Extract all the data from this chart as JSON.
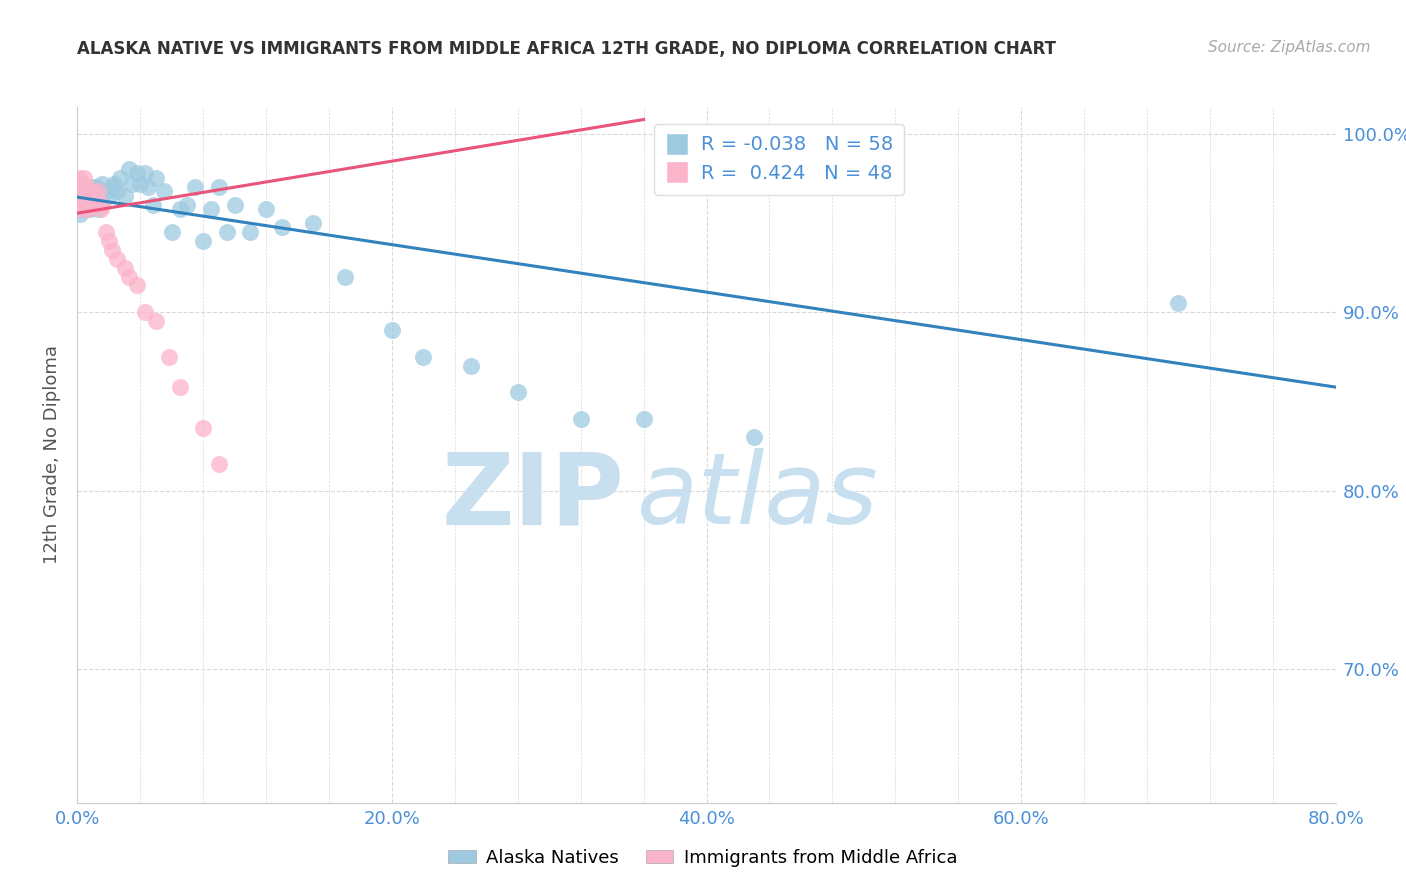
{
  "title": "ALASKA NATIVE VS IMMIGRANTS FROM MIDDLE AFRICA 12TH GRADE, NO DIPLOMA CORRELATION CHART",
  "source": "Source: ZipAtlas.com",
  "ylabel": "12th Grade, No Diploma",
  "xmin": 0.0,
  "xmax": 0.8,
  "ymin": 0.625,
  "ymax": 1.015,
  "xtick_labels": [
    "0.0%",
    "",
    "",
    "",
    "",
    "20.0%",
    "",
    "",
    "",
    "",
    "40.0%",
    "",
    "",
    "",
    "",
    "60.0%",
    "",
    "",
    "",
    "",
    "80.0%"
  ],
  "xtick_vals": [
    0.0,
    0.04,
    0.08,
    0.12,
    0.16,
    0.2,
    0.24,
    0.28,
    0.32,
    0.36,
    0.4,
    0.44,
    0.48,
    0.52,
    0.56,
    0.6,
    0.64,
    0.68,
    0.72,
    0.76,
    0.8
  ],
  "ytick_labels": [
    "70.0%",
    "80.0%",
    "90.0%",
    "100.0%"
  ],
  "ytick_vals": [
    0.7,
    0.8,
    0.9,
    1.0
  ],
  "blue_r": "-0.038",
  "blue_n": "58",
  "pink_r": "0.424",
  "pink_n": "48",
  "blue_color": "#9ecae1",
  "pink_color": "#fbb4c9",
  "blue_line_color": "#3182bd",
  "pink_line_color": "#e8547a",
  "legend_label_blue": "Alaska Natives",
  "legend_label_pink": "Immigrants from Middle Africa",
  "blue_x": [
    0.001,
    0.002,
    0.003,
    0.004,
    0.004,
    0.005,
    0.005,
    0.006,
    0.006,
    0.007,
    0.008,
    0.009,
    0.01,
    0.01,
    0.011,
    0.012,
    0.013,
    0.014,
    0.015,
    0.016,
    0.018,
    0.02,
    0.022,
    0.023,
    0.025,
    0.027,
    0.03,
    0.033,
    0.035,
    0.038,
    0.04,
    0.043,
    0.045,
    0.048,
    0.05,
    0.055,
    0.06,
    0.065,
    0.07,
    0.075,
    0.08,
    0.085,
    0.09,
    0.095,
    0.1,
    0.11,
    0.12,
    0.13,
    0.15,
    0.17,
    0.2,
    0.22,
    0.25,
    0.28,
    0.32,
    0.36,
    0.43,
    0.7
  ],
  "blue_y": [
    0.96,
    0.955,
    0.963,
    0.958,
    0.965,
    0.958,
    0.968,
    0.96,
    0.97,
    0.962,
    0.958,
    0.965,
    0.96,
    0.97,
    0.965,
    0.97,
    0.958,
    0.965,
    0.96,
    0.972,
    0.968,
    0.965,
    0.97,
    0.972,
    0.968,
    0.975,
    0.965,
    0.98,
    0.972,
    0.978,
    0.972,
    0.978,
    0.97,
    0.96,
    0.975,
    0.968,
    0.945,
    0.958,
    0.96,
    0.97,
    0.94,
    0.958,
    0.97,
    0.945,
    0.96,
    0.945,
    0.958,
    0.948,
    0.95,
    0.92,
    0.89,
    0.875,
    0.87,
    0.855,
    0.84,
    0.84,
    0.83,
    0.905
  ],
  "pink_x": [
    0.0,
    0.001,
    0.001,
    0.001,
    0.001,
    0.001,
    0.002,
    0.002,
    0.002,
    0.002,
    0.002,
    0.003,
    0.003,
    0.003,
    0.003,
    0.004,
    0.004,
    0.004,
    0.004,
    0.005,
    0.005,
    0.005,
    0.006,
    0.006,
    0.006,
    0.007,
    0.007,
    0.008,
    0.009,
    0.01,
    0.011,
    0.012,
    0.013,
    0.015,
    0.016,
    0.018,
    0.02,
    0.022,
    0.025,
    0.03,
    0.033,
    0.038,
    0.043,
    0.05,
    0.058,
    0.065,
    0.08,
    0.09
  ],
  "pink_y": [
    0.96,
    0.958,
    0.965,
    0.968,
    0.972,
    0.975,
    0.96,
    0.965,
    0.968,
    0.97,
    0.972,
    0.96,
    0.965,
    0.968,
    0.972,
    0.96,
    0.965,
    0.97,
    0.975,
    0.96,
    0.965,
    0.97,
    0.958,
    0.965,
    0.97,
    0.958,
    0.965,
    0.965,
    0.968,
    0.96,
    0.963,
    0.965,
    0.968,
    0.958,
    0.96,
    0.945,
    0.94,
    0.935,
    0.93,
    0.925,
    0.92,
    0.915,
    0.9,
    0.895,
    0.875,
    0.858,
    0.835,
    0.815
  ],
  "blue_trendline_x": [
    0.0,
    0.8
  ],
  "blue_trendline_y": [
    0.9645,
    0.858
  ],
  "pink_trendline_x": [
    0.0,
    0.36
  ],
  "pink_trendline_y": [
    0.9555,
    1.008
  ],
  "background_color": "#ffffff",
  "grid_color": "#d9d9d9",
  "watermark_zip_color": "#c8dff0",
  "watermark_atlas_color": "#c8dff0"
}
